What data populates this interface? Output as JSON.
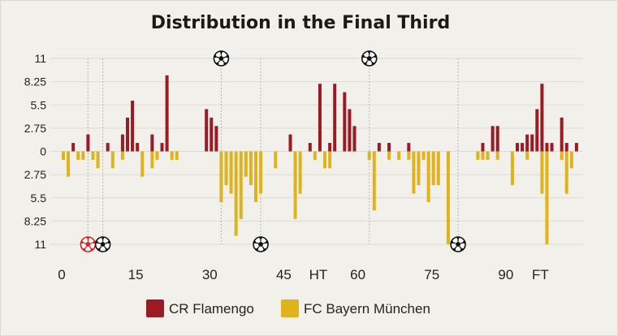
{
  "chart_data": {
    "type": "bar",
    "title": "Distribution in the Final Third",
    "xlabel": "",
    "ylabel": "",
    "ylim": [
      -11,
      11
    ],
    "y_tick_labels": [
      {
        "value": 11,
        "label": "11"
      },
      {
        "value": 8.25,
        "label": "8.25"
      },
      {
        "value": 5.5,
        "label": "5.5"
      },
      {
        "value": 2.75,
        "label": "2.75"
      },
      {
        "value": 0,
        "label": "0"
      },
      {
        "value": -2.75,
        "label": "2.75"
      },
      {
        "value": -5.5,
        "label": "5.5"
      },
      {
        "value": -8.25,
        "label": "8.25"
      },
      {
        "value": -11,
        "label": "11"
      }
    ],
    "x_tick_labels": [
      {
        "x": 0,
        "label": "0"
      },
      {
        "x": 15,
        "label": "15"
      },
      {
        "x": 30,
        "label": "30"
      },
      {
        "x": 45,
        "label": "45"
      },
      {
        "x": 52,
        "label": "HT"
      },
      {
        "x": 60,
        "label": "60"
      },
      {
        "x": 75,
        "label": "75"
      },
      {
        "x": 90,
        "label": "90"
      },
      {
        "x": 97,
        "label": "FT"
      }
    ],
    "xlim": [
      0,
      105
    ],
    "grid": true,
    "legend_position": "bottom",
    "series": [
      {
        "name": "CR Flamengo",
        "color": "#9b1b24",
        "x": [
          2,
          5,
          9,
          12,
          13,
          14,
          15,
          18,
          20,
          21,
          29,
          30,
          31,
          46,
          50,
          52,
          54,
          55,
          57,
          58,
          59,
          64,
          66,
          70,
          85,
          87,
          88,
          92,
          93,
          94,
          95,
          96,
          97,
          98,
          99,
          101,
          102,
          104
        ],
        "values": [
          1,
          2,
          1,
          2,
          4,
          6,
          1,
          2,
          1,
          9,
          5,
          4,
          3,
          2,
          1,
          8,
          1,
          8,
          7,
          5,
          3,
          1,
          1,
          1,
          1,
          3,
          3,
          1,
          1,
          2,
          2,
          5,
          8,
          1,
          1,
          4,
          1,
          1
        ]
      },
      {
        "name": "FC Bayern München",
        "color": "#e0b31c",
        "x": [
          0,
          1,
          3,
          4,
          6,
          7,
          10,
          12,
          16,
          18,
          19,
          22,
          23,
          32,
          33,
          34,
          35,
          36,
          37,
          38,
          39,
          40,
          43,
          47,
          48,
          51,
          53,
          54,
          62,
          63,
          66,
          68,
          70,
          71,
          72,
          73,
          74,
          75,
          76,
          78,
          84,
          85,
          86,
          88,
          91,
          94,
          97,
          98,
          101,
          102,
          103
        ],
        "values": [
          -1,
          -3,
          -1,
          -1,
          -1,
          -2,
          -2,
          -1,
          -3,
          -2,
          -1,
          -1,
          -1,
          -6,
          -4,
          -5,
          -10,
          -8,
          -3,
          -4,
          -6,
          -5,
          -2,
          -8,
          -5,
          -1,
          -2,
          -2,
          -1,
          -7,
          -1,
          -1,
          -1,
          -5,
          -4,
          -1,
          -6,
          -4,
          -4,
          -11,
          -1,
          -1,
          -1,
          -1,
          -4,
          -1,
          -5,
          -11,
          -1,
          -5,
          -2
        ]
      }
    ],
    "goal_lines_x": [
      5,
      8,
      32,
      40,
      62,
      80
    ],
    "goal_markers": [
      {
        "x": 32,
        "team": "CR Flamengo"
      },
      {
        "x": 62,
        "team": "CR Flamengo"
      },
      {
        "x": 5,
        "team": "FC Bayern München",
        "own_goal": true
      },
      {
        "x": 8,
        "team": "FC Bayern München"
      },
      {
        "x": 40,
        "team": "FC Bayern München"
      },
      {
        "x": 80,
        "team": "FC Bayern München"
      }
    ],
    "colors": {
      "background": "#f1f0eb",
      "grid": "#dcdcd6",
      "goal_line": "#b5b5b5",
      "own_goal": "#e02020"
    }
  }
}
